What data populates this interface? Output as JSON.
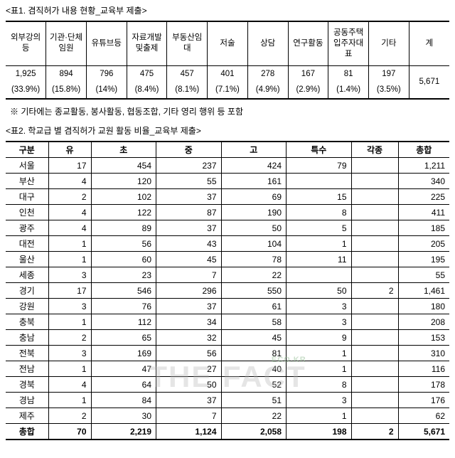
{
  "title1": "<표1. 겸직허가 내용 현황_교육부 제출>",
  "table1": {
    "headers": [
      [
        "외",
        "부",
        "강",
        "의",
        "등"
      ],
      [
        "기",
        "관·",
        "단",
        "체",
        "임",
        "원"
      ],
      [
        "유",
        "튜",
        "브",
        "등"
      ],
      [
        "자",
        "료",
        "개",
        "발",
        "및",
        "출",
        "제"
      ],
      [
        "부",
        "동",
        "산",
        "임",
        "대"
      ],
      [
        "저",
        "술"
      ],
      [
        "상",
        "담"
      ],
      [
        "연",
        "구",
        "활",
        "동"
      ],
      [
        "공",
        "동",
        "주",
        "택",
        "입",
        "주",
        "자",
        "대",
        "표"
      ],
      [
        "기",
        "타"
      ],
      [
        "계"
      ]
    ],
    "values": [
      "1,925",
      "894",
      "796",
      "475",
      "457",
      "401",
      "278",
      "167",
      "81",
      "197",
      "5,671"
    ],
    "pcts": [
      "(33.9%)",
      "(15.8%)",
      "(14%)",
      "(8.4%)",
      "(8.1%)",
      "(7.1%)",
      "(4.9%)",
      "(2.9%)",
      "(1.4%)",
      "(3.5%)",
      ""
    ]
  },
  "note": "※ 기타에는 종교활동, 봉사활동, 협동조합, 기타 영리 행위 등 포함",
  "title2": "<표2. 학교급 별 겸직허가 교원 활동 비율_교육부 제출>",
  "table2": {
    "headers": [
      "구분",
      "유",
      "초",
      "중",
      "고",
      "특수",
      "각종",
      "총합"
    ],
    "rows": [
      [
        "서울",
        "17",
        "454",
        "237",
        "424",
        "79",
        "",
        "1,211"
      ],
      [
        "부산",
        "4",
        "120",
        "55",
        "161",
        "",
        "",
        "340"
      ],
      [
        "대구",
        "2",
        "102",
        "37",
        "69",
        "15",
        "",
        "225"
      ],
      [
        "인천",
        "4",
        "122",
        "87",
        "190",
        "8",
        "",
        "411"
      ],
      [
        "광주",
        "4",
        "89",
        "37",
        "50",
        "5",
        "",
        "185"
      ],
      [
        "대전",
        "1",
        "56",
        "43",
        "104",
        "1",
        "",
        "205"
      ],
      [
        "울산",
        "1",
        "60",
        "45",
        "78",
        "11",
        "",
        "195"
      ],
      [
        "세종",
        "3",
        "23",
        "7",
        "22",
        "",
        "",
        "55"
      ],
      [
        "경기",
        "17",
        "546",
        "296",
        "550",
        "50",
        "2",
        "1,461"
      ],
      [
        "강원",
        "3",
        "76",
        "37",
        "61",
        "3",
        "",
        "180"
      ],
      [
        "충북",
        "1",
        "112",
        "34",
        "58",
        "3",
        "",
        "208"
      ],
      [
        "충남",
        "2",
        "65",
        "32",
        "45",
        "9",
        "",
        "153"
      ],
      [
        "전북",
        "3",
        "169",
        "56",
        "81",
        "1",
        "",
        "310"
      ],
      [
        "전남",
        "1",
        "47",
        "27",
        "40",
        "1",
        "",
        "116"
      ],
      [
        "경북",
        "4",
        "64",
        "50",
        "52",
        "8",
        "",
        "178"
      ],
      [
        "경남",
        "1",
        "84",
        "37",
        "51",
        "3",
        "",
        "176"
      ],
      [
        "제주",
        "2",
        "30",
        "7",
        "22",
        "1",
        "",
        "62"
      ]
    ],
    "total": [
      "총합",
      "70",
      "2,219",
      "1,124",
      "2,058",
      "198",
      "2",
      "5,671"
    ]
  },
  "watermark": {
    "eco": "ECO.KR",
    "main": "THE FACT"
  }
}
